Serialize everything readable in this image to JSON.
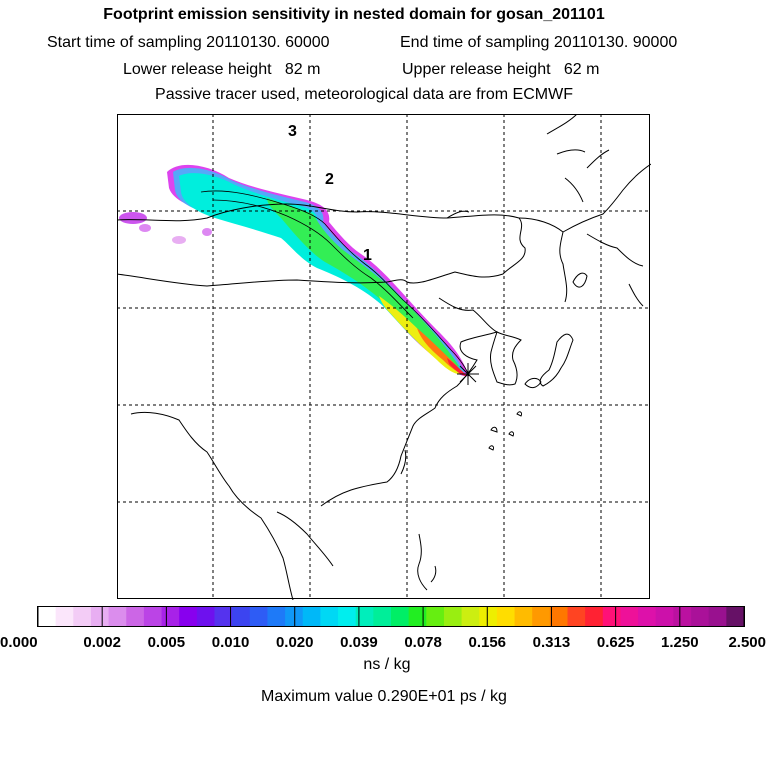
{
  "header": {
    "title": "Footprint emission sensitivity in nested domain for gosan_201101",
    "start_sampling": "Start time of sampling 20110130. 60000",
    "end_sampling": "End time of sampling 20110130. 90000",
    "lower_release": "Lower release height   82 m",
    "upper_release": "Upper release height   62 m",
    "tracer_note": "Passive tracer used, meteorological data are from ECMWF"
  },
  "map": {
    "trajectory_labels": [
      "1",
      "2",
      "3"
    ],
    "release_marker": "star-icon"
  },
  "colorbar": {
    "tick_labels": [
      "0.000",
      "0.002",
      "0.005",
      "0.010",
      "0.020",
      "0.039",
      "0.078",
      "0.156",
      "0.313",
      "0.625",
      "1.250",
      "2.500"
    ],
    "colors": [
      "#ffffff",
      "#fbe6fb",
      "#f3ccf6",
      "#e8aef2",
      "#db8ded",
      "#cc66e6",
      "#bb44e6",
      "#a822e8",
      "#8800ee",
      "#6e11ee",
      "#5533ee",
      "#3c44f0",
      "#2e5cf5",
      "#1e7af8",
      "#1098f8",
      "#00b8f8",
      "#00d8f4",
      "#00eeee",
      "#00eebb",
      "#00ee99",
      "#00ee66",
      "#22ee22",
      "#66ee11",
      "#99ee11",
      "#ccee11",
      "#eeee00",
      "#ffdd00",
      "#ffbb00",
      "#ff9900",
      "#ff7700",
      "#ff4422",
      "#ff2233",
      "#ff1177",
      "#ee1199",
      "#dd11aa",
      "#cc11aa",
      "#bb11a0",
      "#aa1199",
      "#99118f",
      "#661166"
    ],
    "unit": "ns / kg",
    "max_value": "Maximum value  0.290E+01 ps / kg"
  }
}
